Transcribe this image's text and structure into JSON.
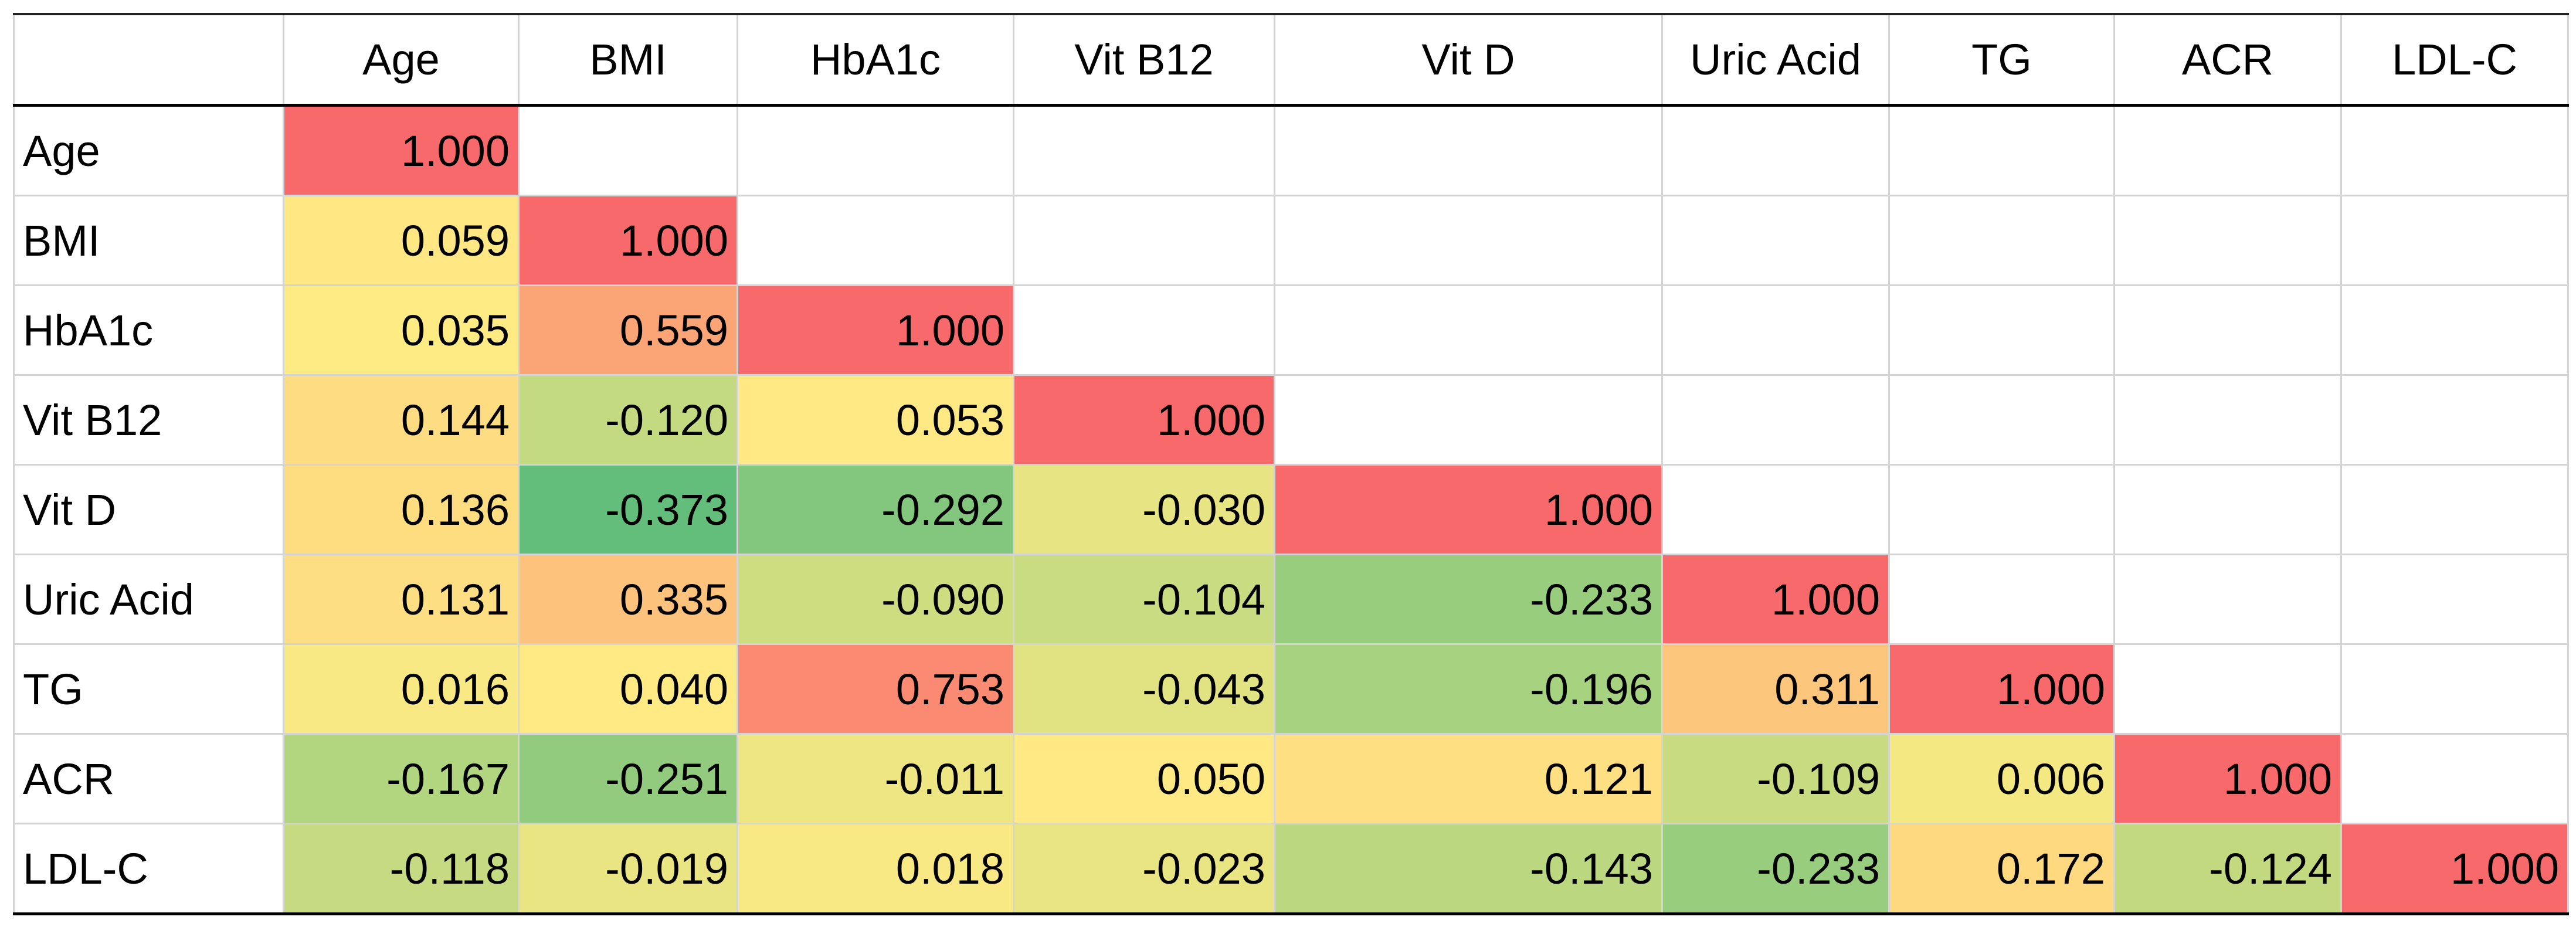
{
  "table": {
    "columns": [
      "Age",
      "BMI",
      "HbA1c",
      "Vit B12",
      "Vit D",
      "Uric Acid",
      "TG",
      "ACR",
      "LDL-C"
    ],
    "rows": [
      {
        "label": "Age",
        "values": [
          "1.000"
        ]
      },
      {
        "label": "BMI",
        "values": [
          "0.059",
          "1.000"
        ]
      },
      {
        "label": "HbA1c",
        "values": [
          "0.035",
          "0.559",
          "1.000"
        ]
      },
      {
        "label": "Vit B12",
        "values": [
          "0.144",
          "-0.120",
          "0.053",
          "1.000"
        ]
      },
      {
        "label": "Vit D",
        "values": [
          "0.136",
          "-0.373",
          "-0.292",
          "-0.030",
          "1.000"
        ]
      },
      {
        "label": "Uric Acid",
        "values": [
          "0.131",
          "0.335",
          "-0.090",
          "-0.104",
          "-0.233",
          "1.000"
        ]
      },
      {
        "label": "TG",
        "values": [
          "0.016",
          "0.040",
          "0.753",
          "-0.043",
          "-0.196",
          "0.311",
          "1.000"
        ]
      },
      {
        "label": "ACR",
        "values": [
          "-0.167",
          "-0.251",
          "-0.011",
          "0.050",
          "0.121",
          "-0.109",
          "0.006",
          "1.000"
        ]
      },
      {
        "label": "LDL-C",
        "values": [
          "-0.118",
          "-0.019",
          "0.018",
          "-0.023",
          "-0.143",
          "-0.233",
          "0.172",
          "-0.124",
          "1.000"
        ]
      }
    ],
    "color_scale": {
      "low": "#63be7b",
      "mid": "#ffeb84",
      "high": "#f8696b"
    }
  }
}
